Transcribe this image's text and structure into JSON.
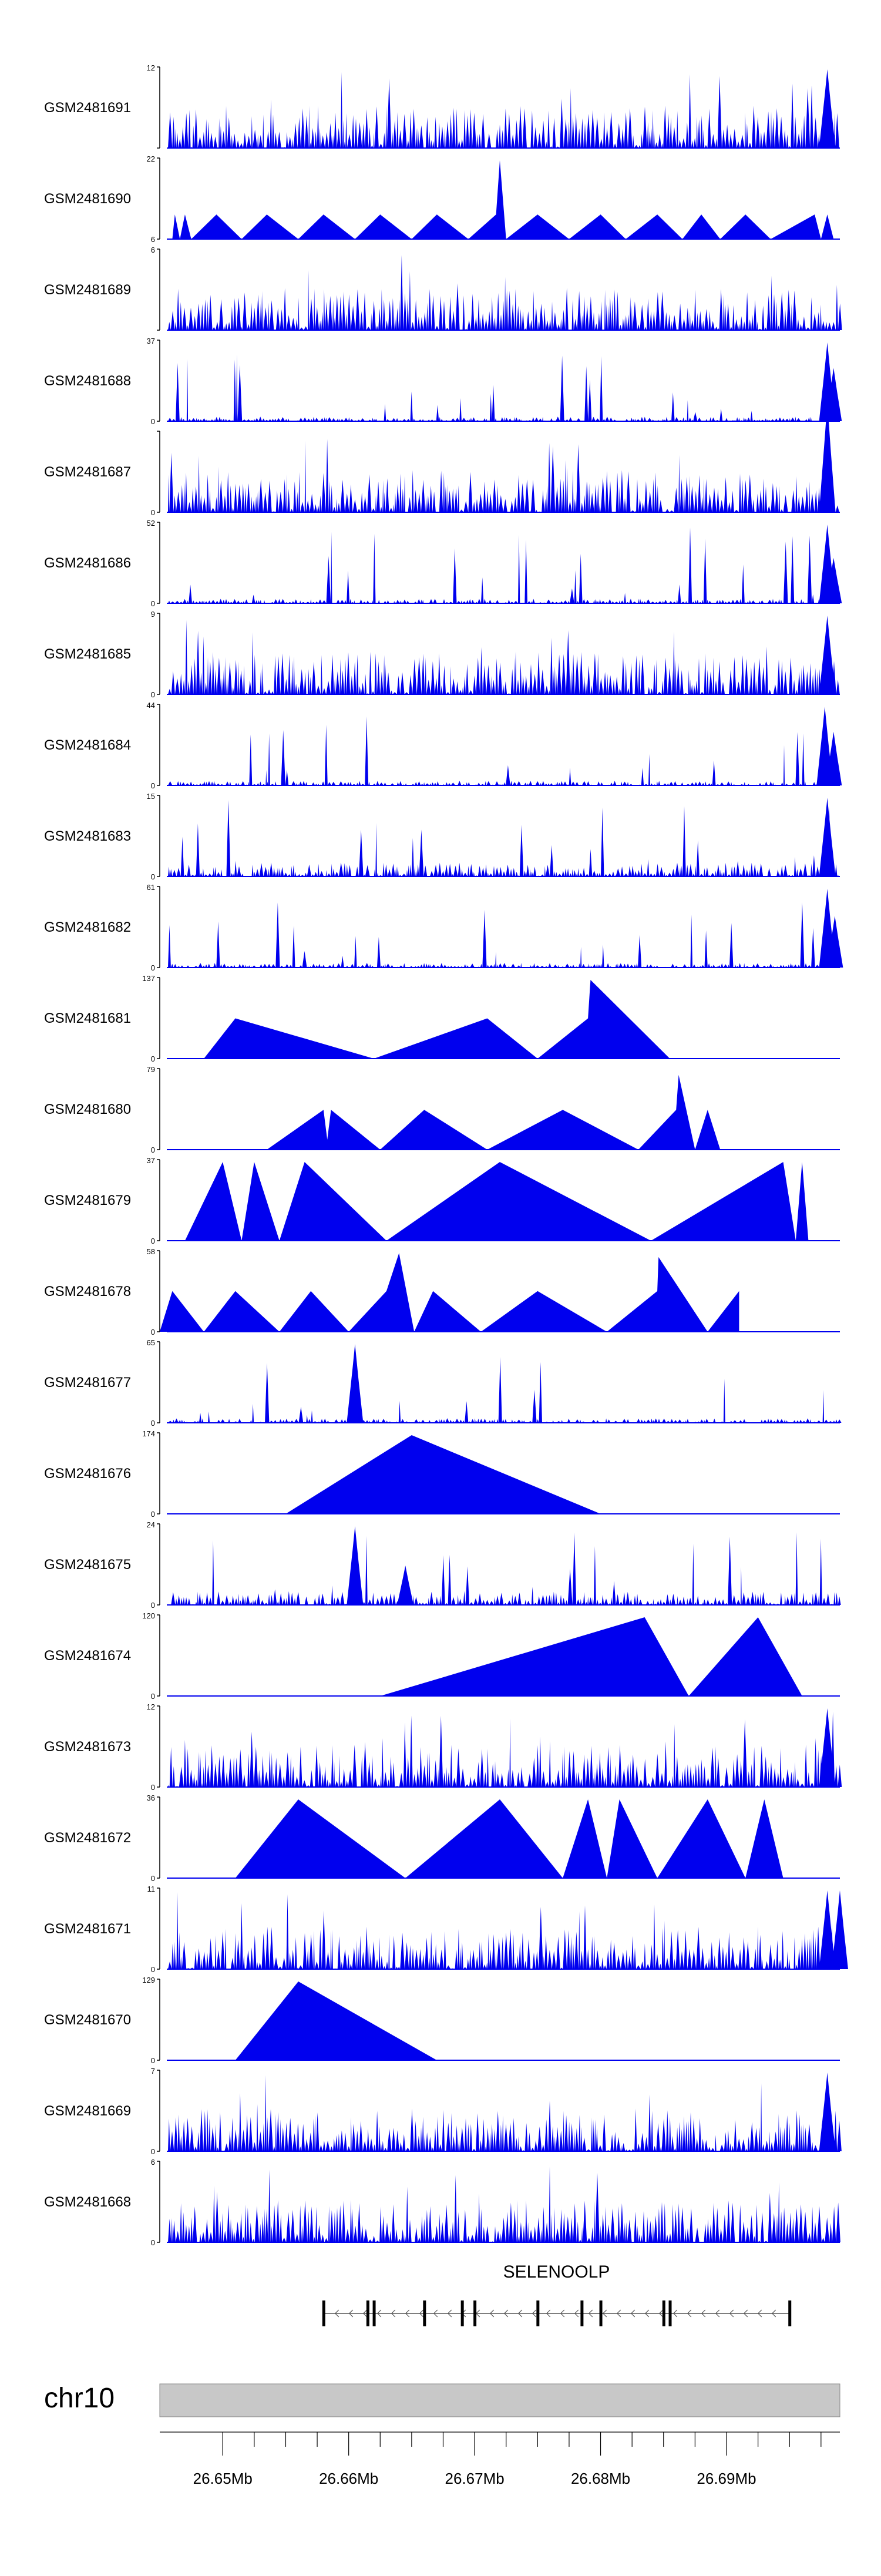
{
  "colors": {
    "track_fill": "#0000ee",
    "axis": "#000000",
    "gene": "#000000",
    "ideogram_fill": "#c8c8c8",
    "ideogram_stroke": "#888888"
  },
  "chart_data": {
    "type": "area",
    "xrange_bp": [
      26645000,
      26699000
    ],
    "series": [
      {
        "name": "GSM2481691",
        "ymax": "12",
        "ymin": "",
        "style": "dense",
        "peaks": [
          [
            26698000,
            12
          ]
        ]
      },
      {
        "name": "GSM2481690",
        "ymax": "22",
        "ymin": "6",
        "style": "sparse",
        "points": [
          [
            26646000,
            6
          ],
          [
            26646200,
            11
          ],
          [
            26646600,
            6
          ],
          [
            26647000,
            11
          ],
          [
            26647500,
            6
          ],
          [
            26649500,
            11
          ],
          [
            26651500,
            6
          ],
          [
            26653500,
            11
          ],
          [
            26656000,
            6
          ],
          [
            26658000,
            11
          ],
          [
            26660500,
            6
          ],
          [
            26662500,
            11
          ],
          [
            26665000,
            6
          ],
          [
            26667000,
            11
          ],
          [
            26669500,
            6
          ],
          [
            26671700,
            11
          ],
          [
            26672000,
            22
          ],
          [
            26672500,
            6
          ],
          [
            26675000,
            11
          ],
          [
            26677500,
            6
          ],
          [
            26680000,
            11
          ],
          [
            26682000,
            6
          ],
          [
            26684500,
            11
          ],
          [
            26686500,
            6
          ],
          [
            26688000,
            11
          ],
          [
            26689500,
            6
          ],
          [
            26691500,
            11
          ],
          [
            26693500,
            6
          ],
          [
            26697000,
            11
          ],
          [
            26697500,
            6
          ],
          [
            26698000,
            11
          ],
          [
            26698500,
            6
          ]
        ]
      },
      {
        "name": "GSM2481689",
        "ymax": "6",
        "ymin": "",
        "style": "dense",
        "peaks": []
      },
      {
        "name": "GSM2481688",
        "ymax": "37",
        "ymin": "0",
        "style": "dense_low",
        "peaks": [
          [
            26698000,
            37
          ],
          [
            26698500,
            25
          ]
        ]
      },
      {
        "name": "GSM2481687",
        "ymax": "",
        "ymin": "0",
        "style": "dense",
        "peaks": [
          [
            26698000,
            14
          ]
        ]
      },
      {
        "name": "GSM2481686",
        "ymax": "52",
        "ymin": "0",
        "style": "dense_low",
        "peaks": [
          [
            26698000,
            52
          ],
          [
            26698500,
            30
          ]
        ]
      },
      {
        "name": "GSM2481685",
        "ymax": "9",
        "ymin": "0",
        "style": "dense",
        "peaks": [
          [
            26698000,
            9
          ]
        ]
      },
      {
        "name": "GSM2481684",
        "ymax": "44",
        "ymin": "0",
        "style": "dense_low",
        "peaks": [
          [
            26697800,
            44
          ],
          [
            26698500,
            30
          ]
        ]
      },
      {
        "name": "GSM2481683",
        "ymax": "15",
        "ymin": "0",
        "style": "dense_mid",
        "peaks": [
          [
            26698000,
            15
          ]
        ]
      },
      {
        "name": "GSM2481682",
        "ymax": "61",
        "ymin": "0",
        "style": "dense_low",
        "peaks": [
          [
            26698000,
            61
          ],
          [
            26698600,
            40
          ]
        ]
      },
      {
        "name": "GSM2481681",
        "ymax": "137",
        "ymin": "0",
        "style": "sparse",
        "points": [
          [
            26648500,
            0
          ],
          [
            26651000,
            70
          ],
          [
            26662000,
            0
          ],
          [
            26671000,
            70
          ],
          [
            26675000,
            0
          ],
          [
            26679000,
            70
          ],
          [
            26679200,
            137
          ],
          [
            26685500,
            0
          ]
        ]
      },
      {
        "name": "GSM2481680",
        "ymax": "79",
        "ymin": "0",
        "style": "sparse",
        "points": [
          [
            26653500,
            0
          ],
          [
            26658000,
            40
          ],
          [
            26658300,
            10
          ],
          [
            26658600,
            40
          ],
          [
            26662500,
            0
          ],
          [
            26666000,
            40
          ],
          [
            26671000,
            0
          ],
          [
            26677000,
            40
          ],
          [
            26683000,
            0
          ],
          [
            26686000,
            40
          ],
          [
            26686200,
            75
          ],
          [
            26687500,
            0
          ],
          [
            26688500,
            40
          ],
          [
            26689500,
            0
          ]
        ]
      },
      {
        "name": "GSM2481679",
        "ymax": "37",
        "ymin": "0",
        "style": "sparse",
        "points": [
          [
            26647000,
            0
          ],
          [
            26650000,
            37
          ],
          [
            26651500,
            0
          ],
          [
            26652500,
            37
          ],
          [
            26654500,
            0
          ],
          [
            26656500,
            37
          ],
          [
            26663000,
            0
          ],
          [
            26672000,
            37
          ],
          [
            26684000,
            0
          ],
          [
            26694500,
            37
          ],
          [
            26695500,
            0
          ],
          [
            26696000,
            37
          ],
          [
            26696500,
            0
          ]
        ]
      },
      {
        "name": "GSM2481678",
        "ymax": "58",
        "ymin": "0",
        "style": "sparse",
        "points": [
          [
            26645000,
            0
          ],
          [
            26646000,
            30
          ],
          [
            26648500,
            0
          ],
          [
            26651000,
            30
          ],
          [
            26654500,
            0
          ],
          [
            26657000,
            30
          ],
          [
            26660000,
            0
          ],
          [
            26663000,
            30
          ],
          [
            26664000,
            58
          ],
          [
            26665200,
            0
          ],
          [
            26666700,
            30
          ],
          [
            26670500,
            0
          ],
          [
            26675000,
            30
          ],
          [
            26680500,
            0
          ],
          [
            26684500,
            30
          ],
          [
            26684600,
            55
          ],
          [
            26688500,
            0
          ],
          [
            26691000,
            30
          ]
        ]
      },
      {
        "name": "GSM2481677",
        "ymax": "65",
        "ymin": "0",
        "style": "dense_low",
        "peaks": [
          [
            26660500,
            65
          ]
        ]
      },
      {
        "name": "GSM2481676",
        "ymax": "174",
        "ymin": "0",
        "style": "sparse",
        "points": [
          [
            26655000,
            0
          ],
          [
            26665000,
            174
          ],
          [
            26680000,
            0
          ]
        ]
      },
      {
        "name": "GSM2481675",
        "ymax": "24",
        "ymin": "0",
        "style": "dense_mid",
        "peaks": [
          [
            26660500,
            24
          ],
          [
            26664500,
            12
          ]
        ]
      },
      {
        "name": "GSM2481674",
        "ymax": "120",
        "ymin": "0",
        "style": "sparse",
        "points": [
          [
            26662500,
            0
          ],
          [
            26683500,
            120
          ],
          [
            26687000,
            0
          ],
          [
            26692500,
            120
          ],
          [
            26696000,
            0
          ]
        ]
      },
      {
        "name": "GSM2481673",
        "ymax": "12",
        "ymin": "0",
        "style": "dense",
        "peaks": [
          [
            26698000,
            12
          ]
        ]
      },
      {
        "name": "GSM2481672",
        "ymax": "36",
        "ymin": "0",
        "style": "sparse",
        "points": [
          [
            26651000,
            0
          ],
          [
            26656000,
            36
          ],
          [
            26664500,
            0
          ],
          [
            26672000,
            36
          ],
          [
            26677000,
            0
          ],
          [
            26679000,
            36
          ],
          [
            26680500,
            0
          ],
          [
            26681500,
            36
          ],
          [
            26684500,
            0
          ],
          [
            26688500,
            36
          ],
          [
            26691500,
            0
          ],
          [
            26693000,
            36
          ],
          [
            26694500,
            0
          ]
        ]
      },
      {
        "name": "GSM2481671",
        "ymax": "11",
        "ymin": "0",
        "style": "dense",
        "peaks": [
          [
            26698000,
            11
          ],
          [
            26699000,
            11
          ]
        ]
      },
      {
        "name": "GSM2481670",
        "ymax": "129",
        "ymin": "0",
        "style": "sparse",
        "points": [
          [
            26651000,
            0
          ],
          [
            26656000,
            129
          ],
          [
            26667000,
            0
          ]
        ]
      },
      {
        "name": "GSM2481669",
        "ymax": "7",
        "ymin": "0",
        "style": "dense",
        "peaks": [
          [
            26698000,
            7
          ]
        ]
      },
      {
        "name": "GSM2481668",
        "ymax": "6",
        "ymin": "0",
        "style": "dense",
        "peaks": []
      }
    ],
    "gene": {
      "name": "SELENOOLP",
      "start": 26658000,
      "end": 26695000,
      "strand": "-",
      "exons": [
        26658000,
        26661500,
        26662000,
        26666000,
        26669000,
        26670000,
        26675000,
        26678500,
        26680000,
        26685000,
        26685500,
        26695000
      ]
    },
    "chromosome": "chr10",
    "ticks": [
      {
        "pos": 26650000,
        "label": "26.65Mb"
      },
      {
        "pos": 26660000,
        "label": "26.66Mb"
      },
      {
        "pos": 26670000,
        "label": "26.67Mb"
      },
      {
        "pos": 26680000,
        "label": "26.68Mb"
      },
      {
        "pos": 26690000,
        "label": "26.69Mb"
      }
    ]
  }
}
